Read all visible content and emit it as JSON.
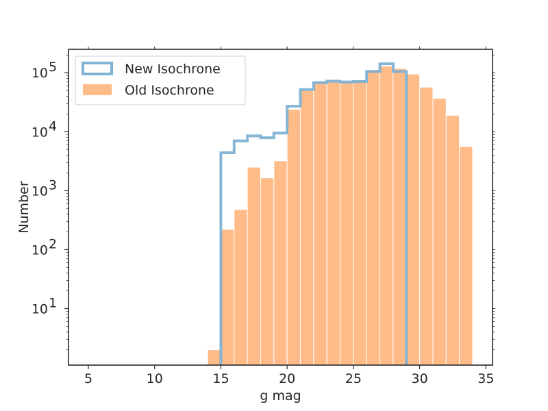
{
  "chart_data": {
    "type": "bar",
    "title": "",
    "xlabel": "g mag",
    "ylabel": "Number",
    "yscale": "log",
    "xlim": [
      3.5,
      35.5
    ],
    "ylim": [
      1.1,
      250000
    ],
    "grid": false,
    "legend_position": "top-left",
    "x_ticks": [
      5,
      10,
      15,
      20,
      25,
      30,
      35
    ],
    "x_tick_labels": [
      "5",
      "10",
      "15",
      "20",
      "25",
      "30",
      "35"
    ],
    "y_ticks": [
      10,
      100,
      1000,
      10000,
      100000
    ],
    "y_tick_labels": [
      {
        "base": "10",
        "exp": "1"
      },
      {
        "base": "10",
        "exp": "2"
      },
      {
        "base": "10",
        "exp": "3"
      },
      {
        "base": "10",
        "exp": "4"
      },
      {
        "base": "10",
        "exp": "5"
      }
    ],
    "series": [
      {
        "name": "New Isochrone",
        "style": "step",
        "color": "#7fb1d3",
        "bin_edges": [
          15,
          16,
          17,
          18,
          19,
          20,
          21,
          22,
          23,
          24,
          25,
          26,
          27,
          28,
          29
        ],
        "values": [
          4400,
          7000,
          8500,
          7900,
          9500,
          27000,
          52000,
          68000,
          72000,
          70000,
          71000,
          105000,
          142000,
          105000
        ]
      },
      {
        "name": "Old Isochrone",
        "style": "filled",
        "color": "#ffbb88",
        "bin_edges": [
          14,
          15,
          16,
          17,
          18,
          19,
          20,
          21,
          22,
          23,
          24,
          25,
          26,
          27,
          28,
          29,
          30,
          31,
          32,
          33,
          34
        ],
        "values": [
          2,
          220,
          480,
          2500,
          1650,
          3200,
          24000,
          50000,
          70000,
          72000,
          70000,
          72000,
          113000,
          130000,
          118000,
          95000,
          57000,
          37000,
          19000,
          5600
        ]
      }
    ]
  }
}
